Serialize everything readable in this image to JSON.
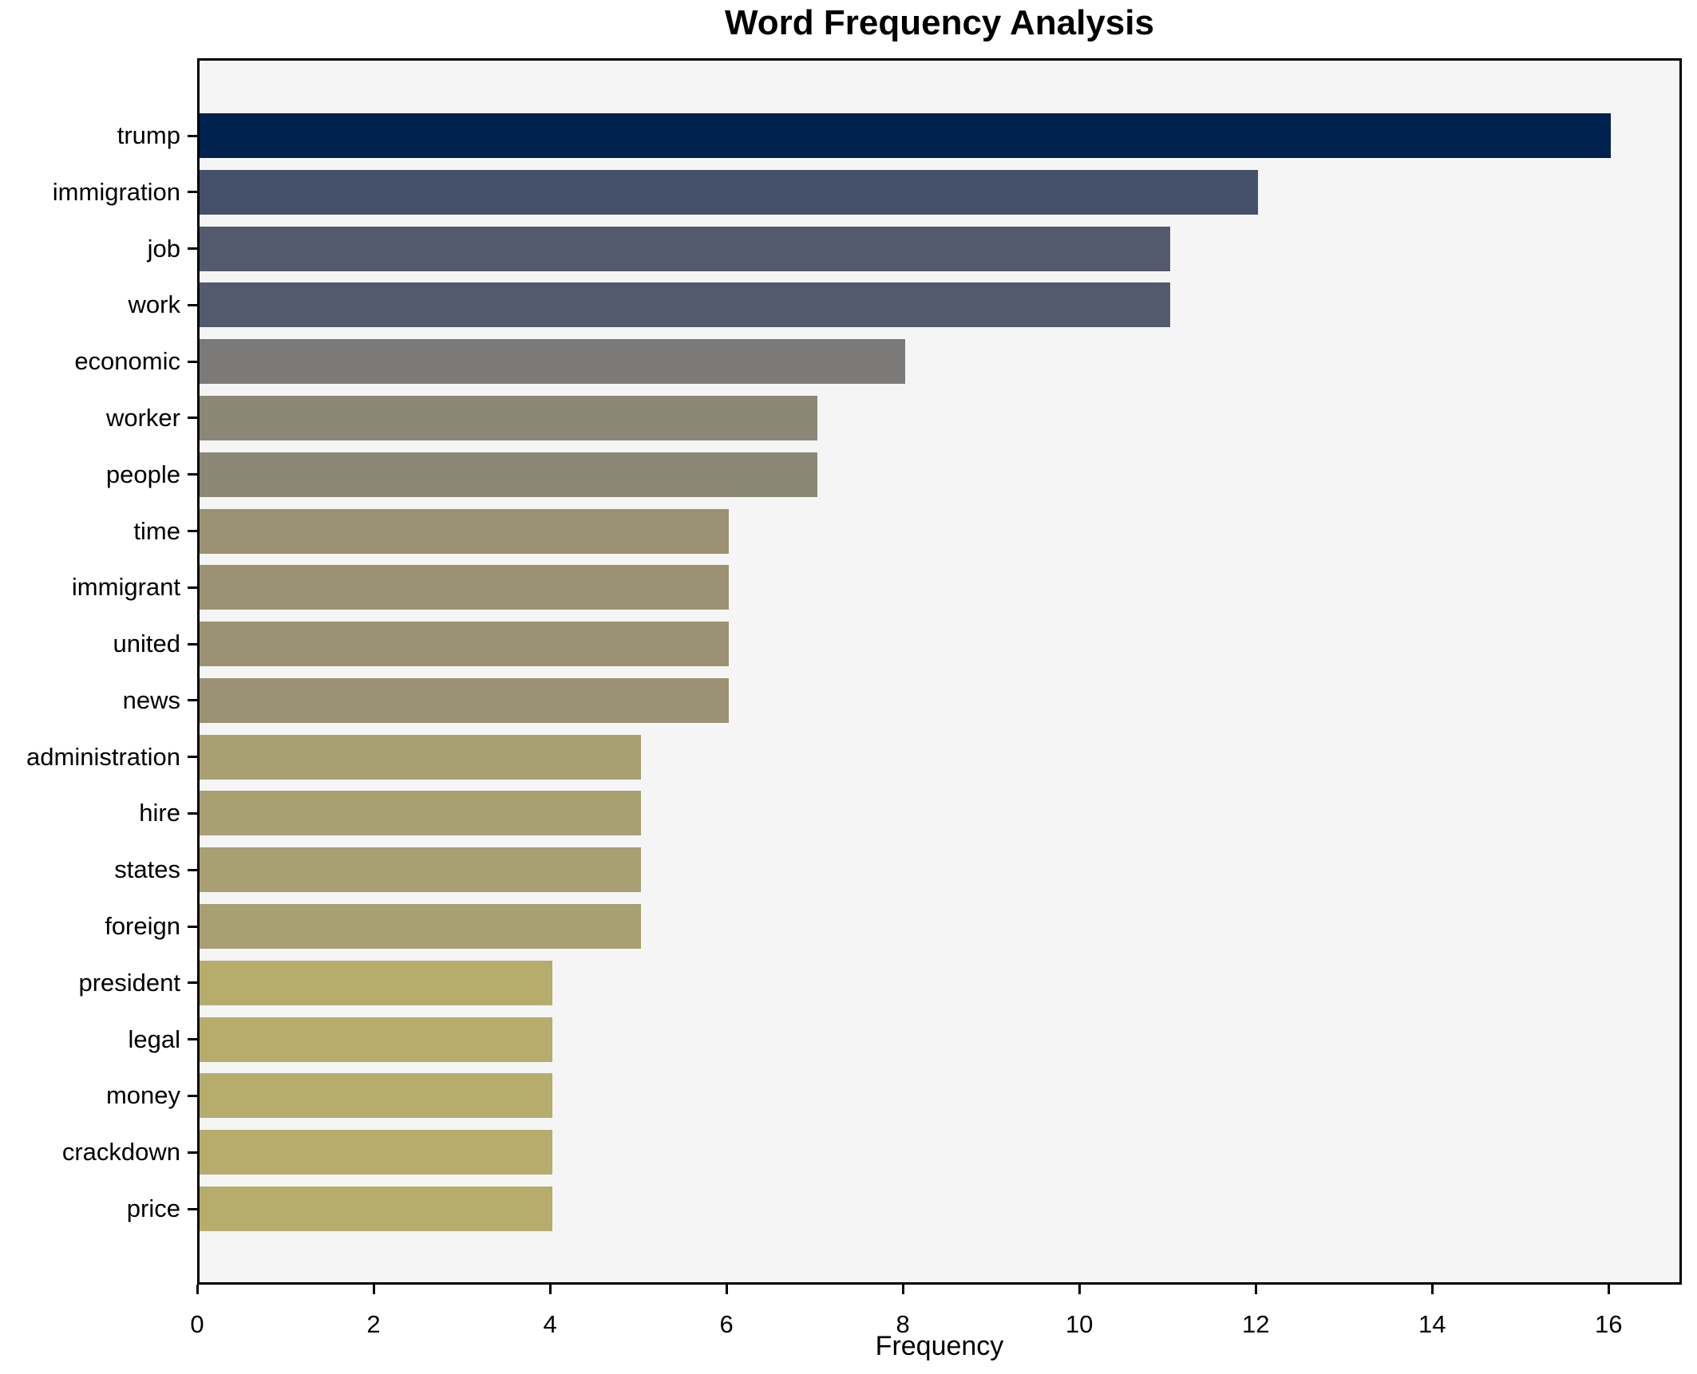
{
  "chart_data": {
    "type": "bar",
    "orientation": "horizontal",
    "title": "Word Frequency Analysis",
    "xlabel": "Frequency",
    "ylabel": "",
    "categories": [
      "trump",
      "immigration",
      "job",
      "work",
      "economic",
      "worker",
      "people",
      "time",
      "immigrant",
      "united",
      "news",
      "administration",
      "hire",
      "states",
      "foreign",
      "president",
      "legal",
      "money",
      "crackdown",
      "price"
    ],
    "values": [
      16,
      12,
      11,
      11,
      8,
      7,
      7,
      6,
      6,
      6,
      6,
      5,
      5,
      5,
      5,
      4,
      4,
      4,
      4,
      4
    ],
    "bar_colors": [
      "#00224E",
      "#45506B",
      "#535A6E",
      "#535A6E",
      "#7B7A78",
      "#8B8777",
      "#8B8777",
      "#9B9273",
      "#9B9273",
      "#9B9273",
      "#9B9273",
      "#A89F73",
      "#A89F73",
      "#A89F73",
      "#A89F73",
      "#B6AC6B",
      "#B6AC6B",
      "#B6AC6B",
      "#B6AC6B",
      "#B6AC6B"
    ],
    "xticks": [
      0,
      2,
      4,
      6,
      8,
      10,
      12,
      14,
      16
    ],
    "xlim": [
      0,
      16.83
    ],
    "grid": false,
    "legend": "none",
    "plot_background": "#f5f5f6",
    "figure_background": "#ffffff",
    "colormap": "cividis"
  }
}
